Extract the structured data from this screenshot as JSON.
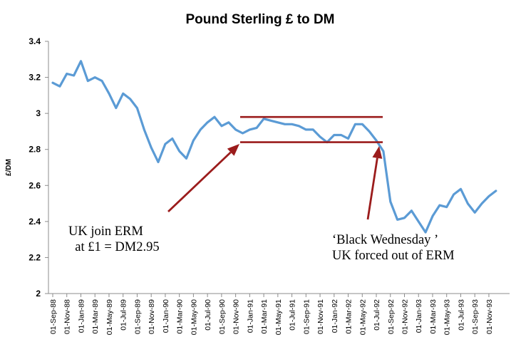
{
  "chart_data": {
    "type": "line",
    "title": "Pound Sterling £ to DM",
    "xlabel": "",
    "ylabel": "£/DM",
    "ylim": [
      2,
      3.4
    ],
    "yticks": [
      "2",
      "2.2",
      "2.4",
      "2.6",
      "2.8",
      "3",
      "3.2",
      "3.4"
    ],
    "ytick_values": [
      2,
      2.2,
      2.4,
      2.6,
      2.8,
      3,
      3.2,
      3.4
    ],
    "grid": false,
    "legend": "none",
    "line_color": "#5b9bd5",
    "annotation_color": "#9b1c1c",
    "xtick_labels": [
      "01-Sep-88",
      "01-Nov-88",
      "01-Jan-89",
      "01-Mar-89",
      "01-May-89",
      "01-Jul-89",
      "01-Sep-89",
      "01-Nov-89",
      "01-Jan-90",
      "01-Mar-90",
      "01-May-90",
      "01-Jul-90",
      "01-Sep-90",
      "01-Nov-90",
      "01-Jan-91",
      "01-Mar-91",
      "01-May-91",
      "01-Jul-91",
      "01-Sep-91",
      "01-Nov-91",
      "01-Jan-92",
      "01-Mar-92",
      "01-May-92",
      "01-Jul-92",
      "01-Sep-92",
      "01-Nov-92",
      "01-Jan-93",
      "01-Mar-93",
      "01-May-93",
      "01-Jul-93",
      "01-Sep-93",
      "01-Nov-93"
    ],
    "series": [
      {
        "values": [
          3.17,
          3.15,
          3.22,
          3.21,
          3.29,
          3.18,
          3.2,
          3.18,
          3.11,
          3.03,
          3.11,
          3.08,
          3.03,
          2.91,
          2.81,
          2.73,
          2.83,
          2.86,
          2.79,
          2.75,
          2.85,
          2.91,
          2.95,
          2.98,
          2.93,
          2.95,
          2.91,
          2.89,
          2.91,
          2.92,
          2.97,
          2.96,
          2.95,
          2.94,
          2.94,
          2.93,
          2.91,
          2.91,
          2.87,
          2.84,
          2.88,
          2.88,
          2.86,
          2.94,
          2.94,
          2.9,
          2.85,
          2.79,
          2.51,
          2.41,
          2.42,
          2.46,
          2.4,
          2.34,
          2.43,
          2.49,
          2.48,
          2.55,
          2.58,
          2.5,
          2.45,
          2.5,
          2.54,
          2.57
        ]
      }
    ],
    "annotations": [
      {
        "lines": [
          "UK join ERM",
          "  at £1 = DM2.95"
        ]
      },
      {
        "lines": [
          "‘Black Wednesday ’",
          "UK forced out of ERM"
        ]
      }
    ],
    "reference_lines": [
      2.98,
      2.84
    ]
  }
}
